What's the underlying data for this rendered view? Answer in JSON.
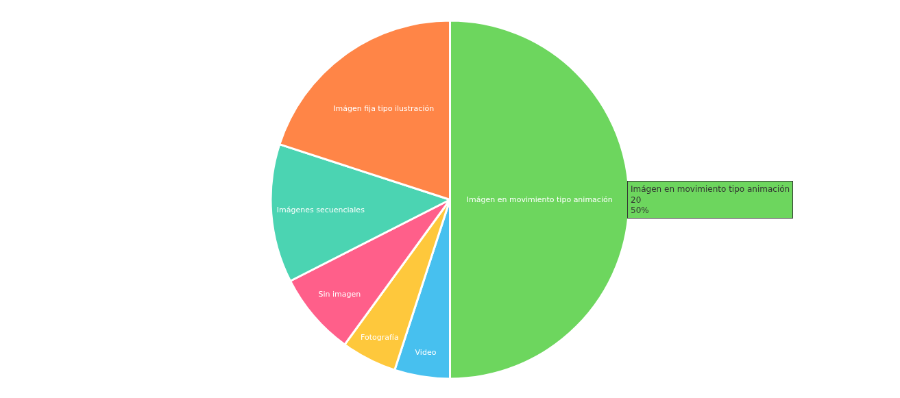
{
  "chart_data": {
    "type": "pie",
    "categories": [
      "Imágen en movimiento tipo animación",
      "Video",
      "Fotografía",
      "Sin imagen",
      "Imágenes secuenciales",
      "Imágen fija tipo ilustración"
    ],
    "values": [
      50,
      5,
      5,
      7.5,
      12.5,
      20
    ],
    "colors": [
      "#6dd65e",
      "#47c0ef",
      "#fec83c",
      "#ff5f8a",
      "#4bd4b2",
      "#ff8547"
    ],
    "legend": false,
    "annotations": [
      "Imágen en movimiento tipo animación\n20\n50%"
    ]
  }
}
